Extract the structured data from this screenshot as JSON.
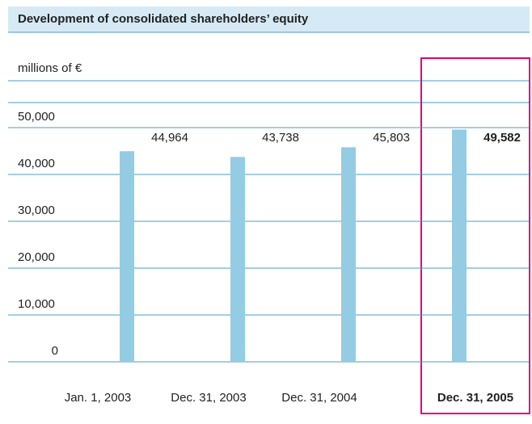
{
  "chart_data": {
    "type": "bar",
    "title": "Development of consolidated shareholders’ equity",
    "y_axis_label": "millions of €",
    "categories": [
      "Jan. 1, 2003",
      "Dec. 31, 2003",
      "Dec. 31, 2004",
      "Dec. 31, 2005"
    ],
    "values": [
      44964,
      43738,
      45803,
      49582
    ],
    "value_labels": [
      "44,964",
      "43,738",
      "45,803",
      "49,582"
    ],
    "color": "#94cce3",
    "ylim": [
      0,
      50000
    ],
    "yticks": [
      0,
      {
        "value": 10000,
        "label": "10,000"
      },
      {
        "value": 20000,
        "label": "20,000"
      },
      {
        "value": 30000,
        "label": "30,000"
      },
      {
        "value": 40000,
        "label": "40,000"
      },
      {
        "value": 50000,
        "label": "50,000"
      }
    ],
    "grid": true
  }
}
